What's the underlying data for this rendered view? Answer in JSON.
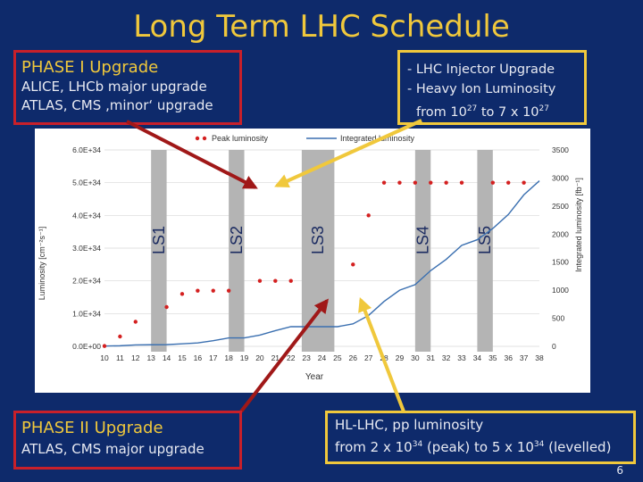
{
  "slide": {
    "title": "Long Term LHC Schedule",
    "page_number": "6"
  },
  "boxes": {
    "phase1": {
      "heading": "PHASE I Upgrade",
      "line1": "ALICE, LHCb major upgrade",
      "line2": "ATLAS, CMS ‚minor‘ upgrade"
    },
    "injector": {
      "line1": "- LHC Injector Upgrade",
      "line2": "- Heavy Ion Luminosity",
      "line3_pre": "from 10",
      "line3_sup1": "27",
      "line3_mid": " to 7 x 10",
      "line3_sup2": "27"
    },
    "phase2": {
      "heading": "PHASE II Upgrade",
      "line1": "ATLAS, CMS major upgrade"
    },
    "hl": {
      "line1": "HL-LHC, pp luminosity",
      "line2_pre": "from 2 x 10",
      "line2_sup1": "34",
      "line2_mid": " (peak) to 5 x 10",
      "line2_sup2": "34",
      "line2_post": " (levelled)"
    }
  },
  "colors": {
    "background": "#0e2a6b",
    "title": "#f0c83c",
    "red_box": "#c8202a",
    "yellow_box": "#f0c83c",
    "peak_series": "#d42020",
    "integrated_series": "#3a6fb0",
    "shutdown_band": "#b4b4b4"
  },
  "chart_data": {
    "type": "scatter",
    "xlabel": "Year",
    "ylabel": "Luminosity [cm⁻²s⁻¹]",
    "y2label": "Integrated luminosity [fb⁻¹]",
    "x_ticks": [
      "10",
      "11",
      "12",
      "13",
      "14",
      "15",
      "16",
      "17",
      "18",
      "19",
      "20",
      "21",
      "22",
      "23",
      "24",
      "25",
      "26",
      "27",
      "28",
      "29",
      "30",
      "31",
      "32",
      "33",
      "34",
      "35",
      "36",
      "37",
      "38"
    ],
    "xlim": [
      10,
      38
    ],
    "ylim": [
      0,
      6e+34
    ],
    "y_ticks": [
      "0.0E+00",
      "1.0E+34",
      "2.0E+34",
      "3.0E+34",
      "4.0E+34",
      "5.0E+34",
      "6.0E+34"
    ],
    "y_tick_values": [
      0,
      1e+34,
      2e+34,
      3e+34,
      4e+34,
      5e+34,
      6e+34
    ],
    "y2lim": [
      0,
      3500
    ],
    "y2_ticks": [
      "0",
      "500",
      "1000",
      "1500",
      "2000",
      "2500",
      "3000",
      "3500"
    ],
    "y2_tick_values": [
      0,
      500,
      1000,
      1500,
      2000,
      2500,
      3000,
      3500
    ],
    "grid": true,
    "legend_position": "top",
    "shutdowns": [
      {
        "label": "LS1",
        "x_start": 13,
        "x_end": 14
      },
      {
        "label": "LS2",
        "x_start": 18,
        "x_end": 19
      },
      {
        "label": "LS3",
        "x_start": 22.7,
        "x_end": 24.8
      },
      {
        "label": "LS4",
        "x_start": 30,
        "x_end": 31
      },
      {
        "label": "LS5",
        "x_start": 34,
        "x_end": 35
      }
    ],
    "series": [
      {
        "name": "Peak luminosity",
        "kind": "points",
        "x": [
          10,
          11,
          12,
          14,
          15,
          16,
          17,
          18,
          20,
          21,
          22,
          26,
          27,
          28,
          29,
          30,
          31,
          32,
          33,
          35,
          36,
          37
        ],
        "y": [
          1e+32,
          3e+33,
          7.5e+33,
          1.2e+34,
          1.6e+34,
          1.7e+34,
          1.7e+34,
          1.7e+34,
          2e+34,
          2e+34,
          2e+34,
          2.5e+34,
          4e+34,
          5e+34,
          5e+34,
          5e+34,
          5e+34,
          5e+34,
          5e+34,
          5e+34,
          5e+34,
          5e+34
        ]
      },
      {
        "name": "Integrated luminosity",
        "kind": "line",
        "x": [
          10,
          11,
          12,
          13,
          14,
          15,
          16,
          17,
          18,
          19,
          20,
          21,
          22,
          23,
          24,
          25,
          26,
          27,
          28,
          29,
          30,
          31,
          32,
          33,
          34,
          35,
          36,
          37,
          38
        ],
        "y": [
          5,
          10,
          25,
          28,
          30,
          45,
          60,
          100,
          150,
          150,
          200,
          280,
          350,
          350,
          350,
          350,
          400,
          550,
          800,
          1000,
          1100,
          1350,
          1550,
          1800,
          1900,
          2100,
          2350,
          2700,
          2950
        ]
      }
    ]
  }
}
